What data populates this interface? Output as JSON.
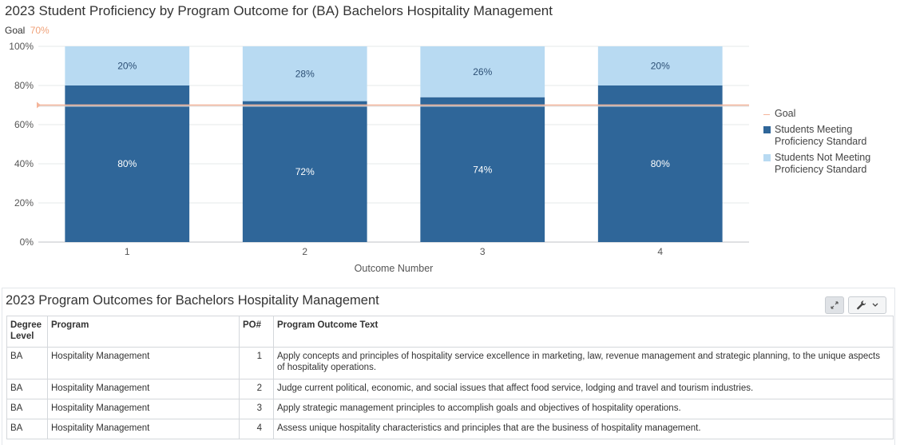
{
  "chart": {
    "title": "2023 Student Proficiency by Program Outcome for (BA) Bachelors Hospitality Management",
    "goal_label": "Goal",
    "goal_value_text": "70%"
  },
  "chart_data": {
    "type": "bar",
    "stacked": true,
    "title": "2023 Student Proficiency by Program Outcome for (BA) Bachelors Hospitality Management",
    "xlabel": "Outcome Number",
    "ylabel": "",
    "categories": [
      "1",
      "2",
      "3",
      "4"
    ],
    "ylim": [
      0,
      100
    ],
    "y_ticks": [
      "0%",
      "20%",
      "40%",
      "60%",
      "80%",
      "100%"
    ],
    "grid": true,
    "legend_position": "right",
    "goal": 70,
    "series": [
      {
        "name": "Students Meeting Proficiency Standard",
        "values": [
          80,
          72,
          74,
          80
        ],
        "labels": [
          "80%",
          "72%",
          "74%",
          "80%"
        ],
        "color": "#2f6699"
      },
      {
        "name": "Students Not Meeting Proficiency Standard",
        "values": [
          20,
          28,
          26,
          20
        ],
        "labels": [
          "20%",
          "28%",
          "26%",
          "20%"
        ],
        "color": "#b8daf2"
      }
    ],
    "goal_color": "#f4b49a"
  },
  "legend": {
    "goal": "Goal",
    "meeting": "Students Meeting Proficiency Standard",
    "not_meeting": "Students Not Meeting Proficiency Standard"
  },
  "table_panel": {
    "title": "2023 Program Outcomes for Bachelors Hospitality Management",
    "headers": {
      "degree": "Degree Level",
      "program": "Program",
      "po": "PO#",
      "text": "Program Outcome Text"
    },
    "rows": [
      {
        "degree": "BA",
        "program": "Hospitality Management",
        "po": "1",
        "text": "Apply concepts and principles of hospitality service excellence in marketing, law, revenue management and strategic planning, to the unique aspects of hospitality operations."
      },
      {
        "degree": "BA",
        "program": "Hospitality Management",
        "po": "2",
        "text": "Judge current political, economic, and social issues that affect food service, lodging and travel and tourism industries."
      },
      {
        "degree": "BA",
        "program": "Hospitality Management",
        "po": "3",
        "text": "Apply strategic management principles to accomplish goals and objectives of hospitality operations."
      },
      {
        "degree": "BA",
        "program": "Hospitality Management",
        "po": "4",
        "text": "Assess unique hospitality characteristics and principles that are the business of hospitality management."
      }
    ]
  },
  "icons": {
    "expand": "expand-icon",
    "wrench": "wrench-icon",
    "dropdown": "chevron-down-icon"
  }
}
